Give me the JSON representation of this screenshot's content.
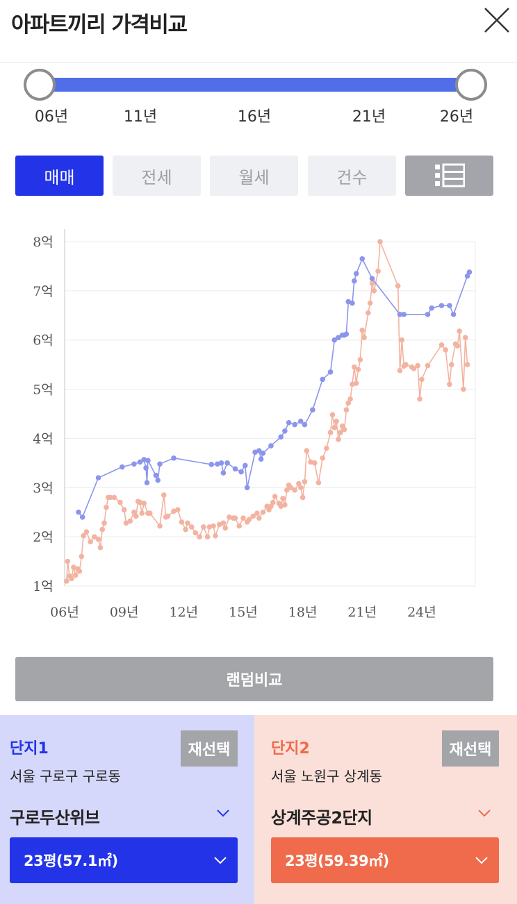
{
  "header": {
    "title": "아파트끼리 가격비교",
    "close_icon": "close-icon"
  },
  "range_slider": {
    "labels": [
      "06년",
      "11년",
      "16년",
      "21년",
      "26년"
    ],
    "selected_start": "06년",
    "selected_end": "26년",
    "accent": "#4f6ee8"
  },
  "tabs": [
    {
      "label": "매매",
      "active": true
    },
    {
      "label": "전세",
      "active": false
    },
    {
      "label": "월세",
      "active": false
    },
    {
      "label": "건수",
      "active": false
    }
  ],
  "list_toggle_icon": "list-view-icon",
  "chart_data": {
    "type": "line",
    "ylim": [
      1,
      8
    ],
    "xlim": [
      2006,
      2026.7
    ],
    "y_ticks": [
      "1억",
      "2억",
      "3억",
      "4억",
      "5억",
      "6억",
      "7억",
      "8억"
    ],
    "x_ticks": [
      "06년",
      "09년",
      "12년",
      "15년",
      "18년",
      "21년",
      "24년"
    ],
    "grid": true,
    "series": [
      {
        "color": "#8c95ec",
        "x": [
          2006.7,
          2006.9,
          2007.7,
          2008.9,
          2009.5,
          2009.8,
          2010.0,
          2010.1,
          2010.15,
          2010.2,
          2010.6,
          2010.7,
          2010.8,
          2011.5,
          2013.4,
          2013.7,
          2013.9,
          2014.0,
          2014.2,
          2014.6,
          2014.9,
          2015.1,
          2015.2,
          2015.6,
          2015.8,
          2015.9,
          2016.0,
          2016.4,
          2016.9,
          2017.1,
          2017.3,
          2017.6,
          2017.9,
          2018.1,
          2018.5,
          2019.0,
          2019.4,
          2019.6,
          2019.8,
          2020.0,
          2020.1,
          2020.2,
          2020.3,
          2020.5,
          2020.6,
          2020.7,
          2021.0,
          2021.5,
          2022.9,
          2023.1,
          2024.3,
          2024.5,
          2025.0,
          2025.4,
          2025.6,
          2026.3,
          2026.4
        ],
        "y": [
          2.5,
          2.4,
          3.2,
          3.42,
          3.48,
          3.52,
          3.57,
          3.4,
          3.1,
          3.55,
          3.25,
          3.15,
          3.48,
          3.6,
          3.47,
          3.48,
          3.5,
          3.3,
          3.5,
          3.38,
          3.32,
          3.45,
          3.0,
          3.72,
          3.75,
          3.58,
          3.7,
          3.85,
          4.03,
          4.15,
          4.32,
          4.28,
          4.35,
          4.28,
          4.58,
          5.2,
          5.35,
          6.0,
          6.05,
          6.1,
          6.1,
          6.12,
          6.78,
          6.75,
          7.2,
          7.35,
          7.65,
          7.25,
          6.52,
          6.52,
          6.52,
          6.65,
          6.7,
          6.7,
          6.52,
          7.3,
          7.38
        ]
      },
      {
        "color": "#f3b3a1",
        "x": [
          2006.1,
          2006.15,
          2006.25,
          2006.35,
          2006.45,
          2006.55,
          2006.65,
          2006.75,
          2006.85,
          2006.95,
          2007.1,
          2007.3,
          2007.5,
          2007.7,
          2007.8,
          2007.9,
          2008.0,
          2008.1,
          2008.2,
          2008.3,
          2008.5,
          2008.8,
          2009.0,
          2009.1,
          2009.3,
          2009.5,
          2009.6,
          2009.7,
          2009.8,
          2009.9,
          2010.0,
          2010.2,
          2010.3,
          2010.8,
          2011.0,
          2011.1,
          2011.2,
          2011.5,
          2011.7,
          2011.9,
          2012.1,
          2012.2,
          2012.4,
          2012.6,
          2012.8,
          2013.0,
          2013.2,
          2013.3,
          2013.5,
          2013.6,
          2013.8,
          2014.0,
          2014.1,
          2014.3,
          2014.5,
          2014.6,
          2014.8,
          2015.0,
          2015.2,
          2015.3,
          2015.5,
          2015.7,
          2015.8,
          2016.0,
          2016.2,
          2016.3,
          2016.4,
          2016.5,
          2016.6,
          2016.8,
          2016.9,
          2017.0,
          2017.1,
          2017.2,
          2017.3,
          2017.4,
          2017.6,
          2017.8,
          2017.9,
          2018.0,
          2018.1,
          2018.2,
          2018.4,
          2018.6,
          2018.8,
          2019.0,
          2019.2,
          2019.4,
          2019.5,
          2019.6,
          2019.7,
          2019.8,
          2019.9,
          2020.0,
          2020.1,
          2020.2,
          2020.3,
          2020.4,
          2020.5,
          2020.6,
          2020.7,
          2020.8,
          2020.9,
          2021.0,
          2021.1,
          2021.3,
          2021.4,
          2021.5,
          2021.6,
          2021.8,
          2021.9,
          2022.8,
          2022.9,
          2023.0,
          2023.1,
          2023.2,
          2023.5,
          2023.6,
          2023.8,
          2023.9,
          2024.0,
          2024.3,
          2025.0,
          2025.2,
          2025.4,
          2025.5,
          2025.7,
          2025.8,
          2025.9,
          2026.1,
          2026.2,
          2026.3
        ],
        "y": [
          1.1,
          1.5,
          1.2,
          1.15,
          1.38,
          1.22,
          1.35,
          1.3,
          1.6,
          2.02,
          2.1,
          1.9,
          2.0,
          1.95,
          1.78,
          2.15,
          2.28,
          2.6,
          2.8,
          2.8,
          2.8,
          2.7,
          2.55,
          2.28,
          2.32,
          2.5,
          2.42,
          2.72,
          2.7,
          2.48,
          2.68,
          2.48,
          2.48,
          2.22,
          2.85,
          2.4,
          2.42,
          2.52,
          2.55,
          2.3,
          2.15,
          2.28,
          2.2,
          2.08,
          2.0,
          2.2,
          2.0,
          2.2,
          2.22,
          2.02,
          2.25,
          2.28,
          2.18,
          2.4,
          2.38,
          2.38,
          2.22,
          2.38,
          2.3,
          2.35,
          2.42,
          2.48,
          2.38,
          2.5,
          2.62,
          2.55,
          2.62,
          2.7,
          2.82,
          2.68,
          2.62,
          2.78,
          2.65,
          2.95,
          3.05,
          3.0,
          2.95,
          3.08,
          3.0,
          2.8,
          3.12,
          3.75,
          3.52,
          3.5,
          3.1,
          3.6,
          3.8,
          4.12,
          4.48,
          4.22,
          4.35,
          3.98,
          4.12,
          4.25,
          4.18,
          4.58,
          4.72,
          4.8,
          5.1,
          5.45,
          5.12,
          5.4,
          5.6,
          6.2,
          6.05,
          6.55,
          6.75,
          7.15,
          7.0,
          7.4,
          8.0,
          7.1,
          5.38,
          6.0,
          5.47,
          5.5,
          5.45,
          5.42,
          5.48,
          4.8,
          5.2,
          5.48,
          5.9,
          5.8,
          5.1,
          5.5,
          5.92,
          5.88,
          6.18,
          5.0,
          6.05,
          5.5
        ]
      }
    ]
  },
  "random_compare": {
    "label": "랜덤비교"
  },
  "complex1": {
    "label": "단지1",
    "reselect": "재선택",
    "address": "서울 구로구 구로동",
    "name": "구로두산위브",
    "size": "23평(57.1㎡)",
    "color": "#2233e8"
  },
  "complex2": {
    "label": "단지2",
    "reselect": "재선택",
    "address": "서울 노원구 상계동",
    "name": "상계주공2단지",
    "size": "23평(59.39㎡)",
    "color": "#ef6b4c"
  }
}
